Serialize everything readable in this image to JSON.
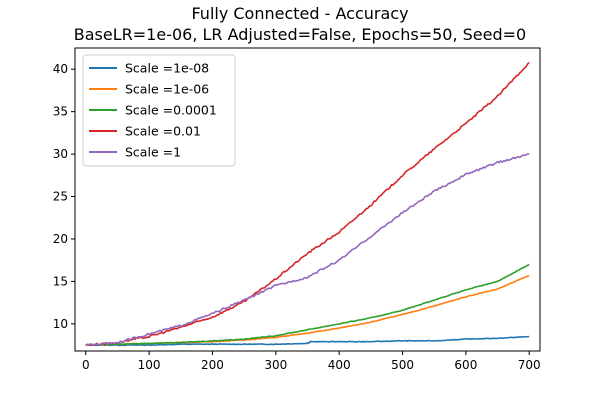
{
  "chart_data": {
    "type": "line",
    "title": "Fully Connected - Accuracy",
    "subtitle": "BaseLR=1e-06, LR Adjusted=False, Epochs=50, Seed=0",
    "xlabel": "",
    "ylabel": "",
    "xlim": [
      -17,
      717
    ],
    "ylim": [
      6.8,
      42.5
    ],
    "xticks": [
      0,
      100,
      200,
      300,
      400,
      500,
      600,
      700
    ],
    "yticks": [
      10,
      15,
      20,
      25,
      30,
      35,
      40
    ],
    "grid": false,
    "legend_position": "top-left",
    "series": [
      {
        "name": "Scale =1e-08",
        "color": "#1f77b4",
        "points": [
          [
            0,
            7.5
          ],
          [
            50,
            7.5
          ],
          [
            100,
            7.5
          ],
          [
            150,
            7.6
          ],
          [
            200,
            7.6
          ],
          [
            250,
            7.6
          ],
          [
            300,
            7.6
          ],
          [
            350,
            7.7
          ],
          [
            355,
            7.9
          ],
          [
            400,
            7.9
          ],
          [
            450,
            7.9
          ],
          [
            500,
            8.0
          ],
          [
            550,
            8.0
          ],
          [
            600,
            8.2
          ],
          [
            650,
            8.3
          ],
          [
            700,
            8.5
          ]
        ]
      },
      {
        "name": "Scale =1e-06",
        "color": "#ff7f0e",
        "points": [
          [
            0,
            7.5
          ],
          [
            50,
            7.6
          ],
          [
            100,
            7.7
          ],
          [
            150,
            7.8
          ],
          [
            200,
            7.9
          ],
          [
            250,
            8.1
          ],
          [
            300,
            8.4
          ],
          [
            350,
            8.9
          ],
          [
            400,
            9.5
          ],
          [
            450,
            10.2
          ],
          [
            500,
            11.1
          ],
          [
            550,
            12.1
          ],
          [
            600,
            13.2
          ],
          [
            650,
            14.1
          ],
          [
            700,
            15.7
          ]
        ]
      },
      {
        "name": "Scale =0.0001",
        "color": "#2ca02c",
        "points": [
          [
            0,
            7.5
          ],
          [
            50,
            7.6
          ],
          [
            100,
            7.7
          ],
          [
            150,
            7.8
          ],
          [
            200,
            8.0
          ],
          [
            250,
            8.2
          ],
          [
            300,
            8.6
          ],
          [
            350,
            9.3
          ],
          [
            400,
            10.0
          ],
          [
            450,
            10.7
          ],
          [
            500,
            11.6
          ],
          [
            550,
            12.8
          ],
          [
            600,
            14.0
          ],
          [
            650,
            15.0
          ],
          [
            700,
            17.0
          ]
        ]
      },
      {
        "name": "Scale =0.01",
        "color": "#d62728",
        "points": [
          [
            0,
            7.5
          ],
          [
            50,
            7.8
          ],
          [
            100,
            8.5
          ],
          [
            150,
            9.6
          ],
          [
            200,
            10.8
          ],
          [
            250,
            12.6
          ],
          [
            300,
            15.3
          ],
          [
            350,
            18.3
          ],
          [
            400,
            20.8
          ],
          [
            450,
            24.0
          ],
          [
            500,
            27.5
          ],
          [
            550,
            30.6
          ],
          [
            600,
            33.6
          ],
          [
            650,
            36.8
          ],
          [
            700,
            40.8
          ]
        ]
      },
      {
        "name": "Scale =1",
        "color": "#9467bd",
        "points": [
          [
            0,
            7.5
          ],
          [
            50,
            7.8
          ],
          [
            100,
            8.8
          ],
          [
            150,
            9.8
          ],
          [
            200,
            11.2
          ],
          [
            250,
            12.8
          ],
          [
            300,
            14.5
          ],
          [
            350,
            15.5
          ],
          [
            400,
            17.5
          ],
          [
            450,
            20.3
          ],
          [
            500,
            23.1
          ],
          [
            550,
            25.6
          ],
          [
            600,
            27.6
          ],
          [
            650,
            29.0
          ],
          [
            700,
            30.0
          ]
        ]
      }
    ]
  }
}
